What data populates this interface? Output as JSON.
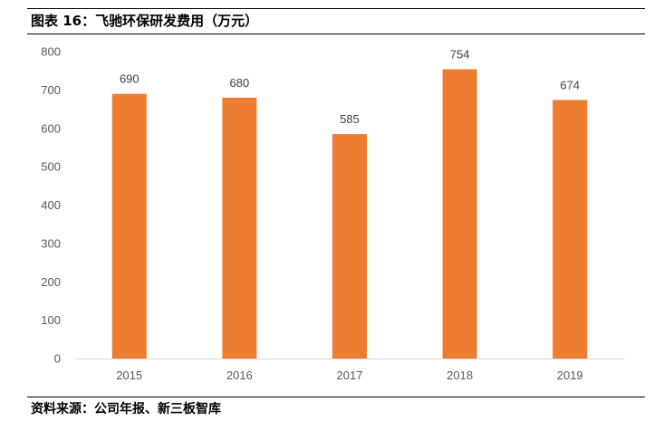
{
  "figure": {
    "title": "图表 16：飞驰环保研发费用（万元）",
    "source": "资料来源：公司年报、新三板智库"
  },
  "colors": {
    "bar": "#ED7D31",
    "axis": "#D9D9D9",
    "tick_text": "#595959",
    "label_text": "#404040"
  },
  "chart_data": {
    "type": "bar",
    "title": "飞驰环保研发费用（万元）",
    "xlabel": "",
    "ylabel": "",
    "categories": [
      "2015",
      "2016",
      "2017",
      "2018",
      "2019"
    ],
    "values": [
      690,
      680,
      585,
      754,
      674
    ],
    "value_labels": [
      "690",
      "680",
      "585",
      "754",
      "674"
    ],
    "ylim": [
      0,
      800
    ],
    "yticks": [
      "0",
      "100",
      "200",
      "300",
      "400",
      "500",
      "600",
      "700",
      "800"
    ],
    "grid": false,
    "legend": "none"
  }
}
